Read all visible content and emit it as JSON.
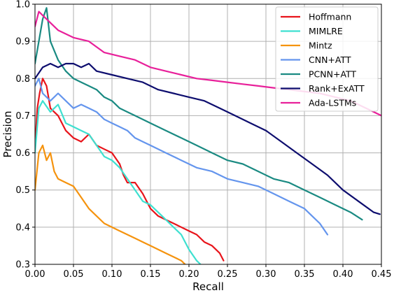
{
  "chart_data": {
    "type": "line",
    "title": "",
    "xlabel": "Recall",
    "ylabel": "Precision",
    "xlim": [
      0.0,
      0.45
    ],
    "ylim": [
      0.3,
      1.0
    ],
    "xticks": [
      "0.00",
      "0.05",
      "0.10",
      "0.15",
      "0.20",
      "0.25",
      "0.30",
      "0.35",
      "0.40",
      "0.45"
    ],
    "yticks": [
      "0.3",
      "0.4",
      "0.5",
      "0.6",
      "0.7",
      "0.8",
      "0.9",
      "1.0"
    ],
    "grid": true,
    "legend_position": "top-right",
    "series": [
      {
        "name": "Hoffmann",
        "color": "#e8141b",
        "points": [
          [
            0.0,
            0.61
          ],
          [
            0.003,
            0.72
          ],
          [
            0.006,
            0.76
          ],
          [
            0.01,
            0.8
          ],
          [
            0.015,
            0.78
          ],
          [
            0.02,
            0.72
          ],
          [
            0.03,
            0.7
          ],
          [
            0.04,
            0.66
          ],
          [
            0.05,
            0.64
          ],
          [
            0.06,
            0.63
          ],
          [
            0.07,
            0.65
          ],
          [
            0.08,
            0.62
          ],
          [
            0.09,
            0.61
          ],
          [
            0.1,
            0.6
          ],
          [
            0.11,
            0.57
          ],
          [
            0.115,
            0.54
          ],
          [
            0.12,
            0.52
          ],
          [
            0.13,
            0.52
          ],
          [
            0.14,
            0.49
          ],
          [
            0.15,
            0.45
          ],
          [
            0.16,
            0.43
          ],
          [
            0.17,
            0.42
          ],
          [
            0.18,
            0.41
          ],
          [
            0.2,
            0.39
          ],
          [
            0.21,
            0.38
          ],
          [
            0.22,
            0.36
          ],
          [
            0.23,
            0.35
          ],
          [
            0.24,
            0.33
          ],
          [
            0.245,
            0.31
          ]
        ]
      },
      {
        "name": "MIMLRE",
        "color": "#3ee0d0",
        "points": [
          [
            0.0,
            0.6
          ],
          [
            0.005,
            0.72
          ],
          [
            0.01,
            0.74
          ],
          [
            0.02,
            0.71
          ],
          [
            0.03,
            0.73
          ],
          [
            0.04,
            0.68
          ],
          [
            0.05,
            0.67
          ],
          [
            0.06,
            0.66
          ],
          [
            0.07,
            0.65
          ],
          [
            0.08,
            0.62
          ],
          [
            0.09,
            0.59
          ],
          [
            0.1,
            0.58
          ],
          [
            0.11,
            0.56
          ],
          [
            0.12,
            0.53
          ],
          [
            0.13,
            0.5
          ],
          [
            0.14,
            0.47
          ],
          [
            0.15,
            0.46
          ],
          [
            0.16,
            0.44
          ],
          [
            0.17,
            0.42
          ],
          [
            0.18,
            0.4
          ],
          [
            0.19,
            0.38
          ],
          [
            0.2,
            0.34
          ],
          [
            0.21,
            0.31
          ],
          [
            0.215,
            0.3
          ]
        ]
      },
      {
        "name": "Mintz",
        "color": "#f5930e",
        "points": [
          [
            0.0,
            0.5
          ],
          [
            0.005,
            0.6
          ],
          [
            0.01,
            0.62
          ],
          [
            0.015,
            0.58
          ],
          [
            0.02,
            0.6
          ],
          [
            0.025,
            0.55
          ],
          [
            0.03,
            0.53
          ],
          [
            0.04,
            0.52
          ],
          [
            0.05,
            0.51
          ],
          [
            0.06,
            0.48
          ],
          [
            0.07,
            0.45
          ],
          [
            0.08,
            0.43
          ],
          [
            0.09,
            0.41
          ],
          [
            0.1,
            0.4
          ],
          [
            0.11,
            0.39
          ],
          [
            0.12,
            0.38
          ],
          [
            0.13,
            0.37
          ],
          [
            0.14,
            0.36
          ],
          [
            0.15,
            0.35
          ],
          [
            0.16,
            0.34
          ],
          [
            0.17,
            0.33
          ],
          [
            0.18,
            0.32
          ],
          [
            0.19,
            0.31
          ],
          [
            0.195,
            0.3
          ]
        ]
      },
      {
        "name": "CNN+ATT",
        "color": "#6495ed",
        "points": [
          [
            0.0,
            0.78
          ],
          [
            0.005,
            0.8
          ],
          [
            0.01,
            0.76
          ],
          [
            0.02,
            0.74
          ],
          [
            0.03,
            0.76
          ],
          [
            0.04,
            0.74
          ],
          [
            0.05,
            0.72
          ],
          [
            0.06,
            0.73
          ],
          [
            0.07,
            0.72
          ],
          [
            0.08,
            0.71
          ],
          [
            0.09,
            0.69
          ],
          [
            0.1,
            0.68
          ],
          [
            0.11,
            0.67
          ],
          [
            0.12,
            0.66
          ],
          [
            0.13,
            0.64
          ],
          [
            0.14,
            0.63
          ],
          [
            0.15,
            0.62
          ],
          [
            0.17,
            0.6
          ],
          [
            0.19,
            0.58
          ],
          [
            0.21,
            0.56
          ],
          [
            0.23,
            0.55
          ],
          [
            0.25,
            0.53
          ],
          [
            0.27,
            0.52
          ],
          [
            0.29,
            0.51
          ],
          [
            0.31,
            0.49
          ],
          [
            0.33,
            0.47
          ],
          [
            0.35,
            0.45
          ],
          [
            0.36,
            0.43
          ],
          [
            0.37,
            0.41
          ],
          [
            0.38,
            0.38
          ]
        ]
      },
      {
        "name": "PCNN+ATT",
        "color": "#1a8a82",
        "points": [
          [
            0.0,
            0.84
          ],
          [
            0.01,
            0.96
          ],
          [
            0.015,
            0.99
          ],
          [
            0.02,
            0.9
          ],
          [
            0.03,
            0.85
          ],
          [
            0.04,
            0.82
          ],
          [
            0.05,
            0.8
          ],
          [
            0.06,
            0.79
          ],
          [
            0.07,
            0.78
          ],
          [
            0.08,
            0.77
          ],
          [
            0.09,
            0.75
          ],
          [
            0.1,
            0.74
          ],
          [
            0.11,
            0.72
          ],
          [
            0.12,
            0.71
          ],
          [
            0.13,
            0.7
          ],
          [
            0.14,
            0.69
          ],
          [
            0.15,
            0.68
          ],
          [
            0.17,
            0.66
          ],
          [
            0.19,
            0.64
          ],
          [
            0.21,
            0.62
          ],
          [
            0.23,
            0.6
          ],
          [
            0.25,
            0.58
          ],
          [
            0.27,
            0.57
          ],
          [
            0.29,
            0.55
          ],
          [
            0.31,
            0.53
          ],
          [
            0.33,
            0.52
          ],
          [
            0.35,
            0.5
          ],
          [
            0.37,
            0.48
          ],
          [
            0.39,
            0.46
          ],
          [
            0.41,
            0.44
          ],
          [
            0.425,
            0.42
          ]
        ]
      },
      {
        "name": "Rank+ExATT",
        "color": "#0d0d6e",
        "points": [
          [
            0.0,
            0.8
          ],
          [
            0.01,
            0.83
          ],
          [
            0.02,
            0.84
          ],
          [
            0.03,
            0.83
          ],
          [
            0.04,
            0.84
          ],
          [
            0.05,
            0.84
          ],
          [
            0.06,
            0.83
          ],
          [
            0.07,
            0.84
          ],
          [
            0.08,
            0.82
          ],
          [
            0.1,
            0.81
          ],
          [
            0.12,
            0.8
          ],
          [
            0.14,
            0.79
          ],
          [
            0.16,
            0.77
          ],
          [
            0.18,
            0.76
          ],
          [
            0.2,
            0.75
          ],
          [
            0.22,
            0.74
          ],
          [
            0.24,
            0.72
          ],
          [
            0.26,
            0.7
          ],
          [
            0.28,
            0.68
          ],
          [
            0.3,
            0.66
          ],
          [
            0.32,
            0.63
          ],
          [
            0.34,
            0.6
          ],
          [
            0.36,
            0.57
          ],
          [
            0.38,
            0.54
          ],
          [
            0.4,
            0.5
          ],
          [
            0.42,
            0.47
          ],
          [
            0.44,
            0.44
          ],
          [
            0.448,
            0.435
          ]
        ]
      },
      {
        "name": "Ada-LSTMs",
        "color": "#e8209a",
        "points": [
          [
            0.0,
            0.94
          ],
          [
            0.005,
            0.98
          ],
          [
            0.01,
            0.97
          ],
          [
            0.02,
            0.95
          ],
          [
            0.03,
            0.93
          ],
          [
            0.05,
            0.91
          ],
          [
            0.07,
            0.9
          ],
          [
            0.09,
            0.87
          ],
          [
            0.11,
            0.86
          ],
          [
            0.13,
            0.85
          ],
          [
            0.15,
            0.83
          ],
          [
            0.17,
            0.82
          ],
          [
            0.19,
            0.81
          ],
          [
            0.21,
            0.8
          ],
          [
            0.23,
            0.795
          ],
          [
            0.25,
            0.79
          ],
          [
            0.27,
            0.785
          ],
          [
            0.29,
            0.78
          ],
          [
            0.31,
            0.775
          ],
          [
            0.33,
            0.77
          ],
          [
            0.35,
            0.765
          ],
          [
            0.37,
            0.76
          ],
          [
            0.39,
            0.75
          ],
          [
            0.41,
            0.74
          ],
          [
            0.43,
            0.72
          ],
          [
            0.45,
            0.7
          ]
        ]
      }
    ]
  }
}
